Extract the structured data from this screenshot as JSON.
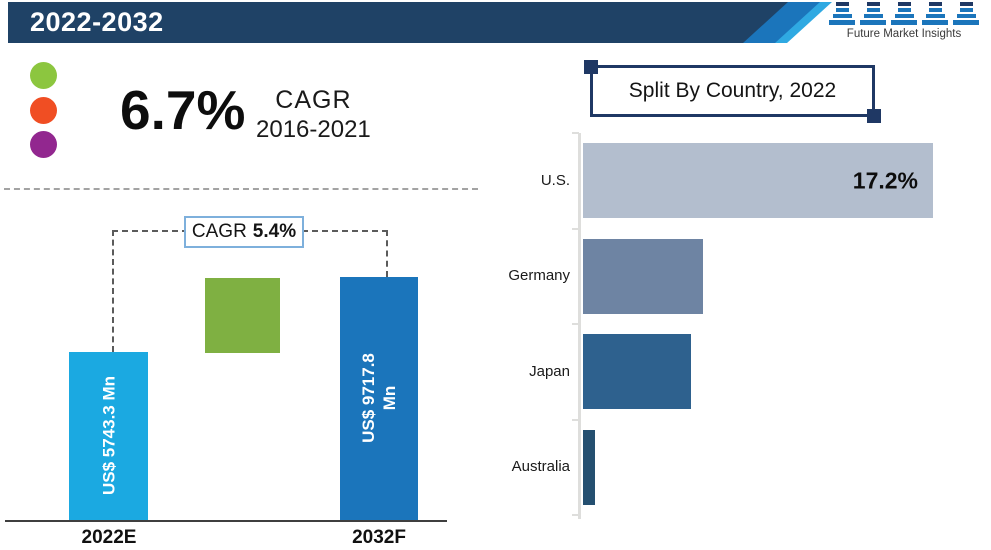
{
  "header": {
    "title": "2022-2032"
  },
  "logo": {
    "text": "Future Market Insights"
  },
  "highlight": {
    "value": "6.7%",
    "label": "CAGR",
    "period": "2016-2021",
    "dot_colors": [
      "#8CC63F",
      "#F04E23",
      "#92278F"
    ]
  },
  "chart_data": [
    {
      "type": "bar",
      "orientation": "vertical",
      "title": "",
      "categories": [
        "2022E",
        "2032F"
      ],
      "values": [
        5743.3,
        9717.8
      ],
      "unit": "US$ Mn",
      "value_labels": [
        "US$ 5743.3 Mn",
        "US$ 9717.8 Mn"
      ],
      "bar_colors": [
        "#1BA9E1",
        "#1B75BB"
      ],
      "marker_color": "#7FB042",
      "annotation": {
        "label": "CAGR",
        "value": "5.4%"
      },
      "grid": false
    },
    {
      "type": "bar",
      "orientation": "horizontal",
      "title": "Split By Country, 2022",
      "categories": [
        "U.S.",
        "Germany",
        "Japan",
        "Australia"
      ],
      "values": [
        17.2,
        5.9,
        5.3,
        0.6
      ],
      "data_labels": [
        "17.2%",
        "",
        "",
        ""
      ],
      "bar_colors": [
        "#B3BECE",
        "#6E84A3",
        "#2E618E",
        "#244F70"
      ],
      "xlim": [
        0,
        17.2
      ],
      "grid": false,
      "legend": "none"
    }
  ]
}
